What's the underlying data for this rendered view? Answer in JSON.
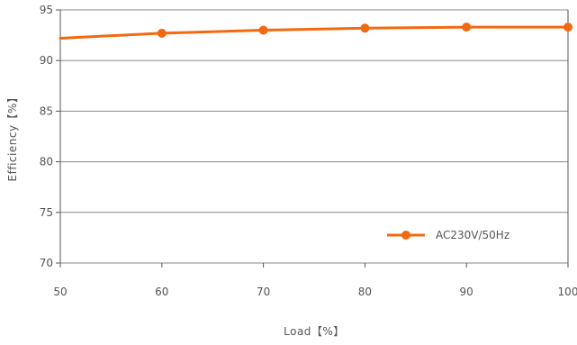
{
  "chart_data": {
    "type": "line",
    "title": "",
    "xlabel": "Load【%】",
    "ylabel": "Efficiency【%】",
    "xlim": [
      50,
      100
    ],
    "ylim": [
      70,
      95
    ],
    "x_ticks": [
      "50",
      "60",
      "70",
      "80",
      "90",
      "100"
    ],
    "y_ticks": [
      "70",
      "75",
      "80",
      "85",
      "90",
      "95"
    ],
    "grid": "horizontal",
    "legend_position": "bottom-right",
    "series": [
      {
        "name": "AC230V/50Hz",
        "color": "#f26a10",
        "line_start": {
          "x": 50,
          "y": 92.2
        },
        "x": [
          60,
          70,
          80,
          90,
          100
        ],
        "y": [
          92.7,
          93.0,
          93.2,
          93.3,
          93.3
        ]
      }
    ]
  }
}
